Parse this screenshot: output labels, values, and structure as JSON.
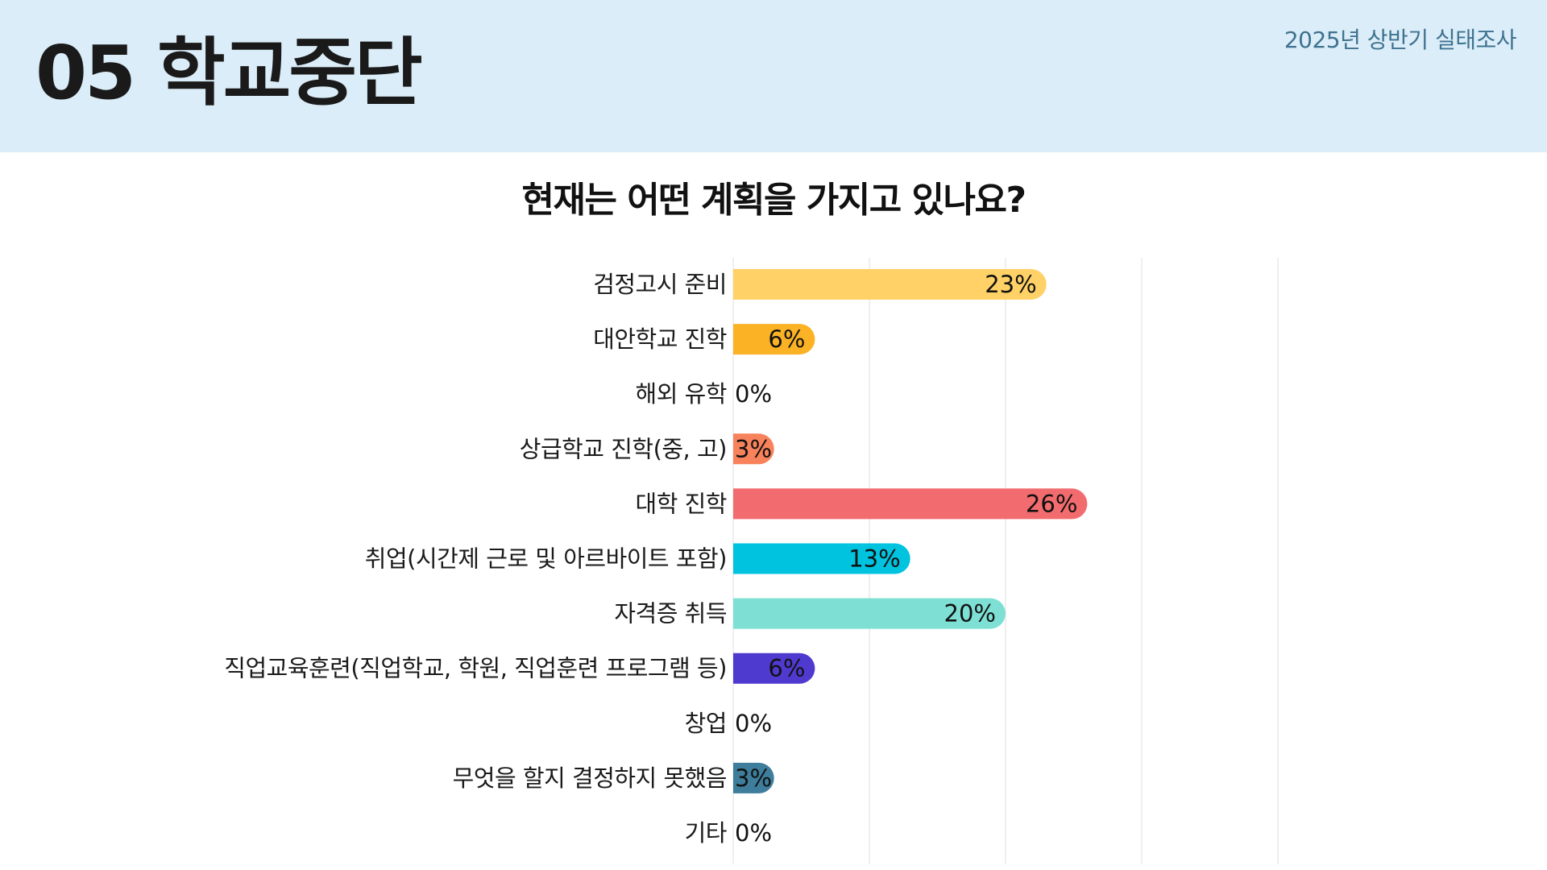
{
  "header": {
    "section_title": "05 학교중단",
    "survey_label": "2025년 상반기 실태조사"
  },
  "question": "현재는 어떤 계획을 가지고 있나요?",
  "chart_data": {
    "type": "bar",
    "orientation": "horizontal",
    "title": "현재는 어떤 계획을 가지고 있나요?",
    "xlim": [
      0,
      40
    ],
    "grid": true,
    "categories": [
      "검정고시 준비",
      "대안학교 진학",
      "해외 유학",
      "상급학교 진학(중, 고)",
      "대학 진학",
      "취업(시간제 근로 및 아르바이트 포함)",
      "자격증 취득",
      "직업교육훈련(직업학교, 학원, 직업훈련 프로그램 등)",
      "창업",
      "무엇을 할지 결정하지 못했음",
      "기타"
    ],
    "values": [
      23,
      6,
      0,
      3,
      26,
      13,
      20,
      6,
      0,
      3,
      0
    ],
    "value_labels": [
      "23%",
      "6%",
      "0%",
      "3%",
      "26%",
      "13%",
      "20%",
      "6%",
      "0%",
      "3%",
      "0%"
    ],
    "colors": [
      "#ffd166",
      "#fbb224",
      "#cccccc",
      "#f7825b",
      "#f26b6e",
      "#00c3df",
      "#7ee0d4",
      "#4f3ad0",
      "#cccccc",
      "#3e7d9c",
      "#cccccc"
    ],
    "grid_color": "#eaeaea"
  }
}
